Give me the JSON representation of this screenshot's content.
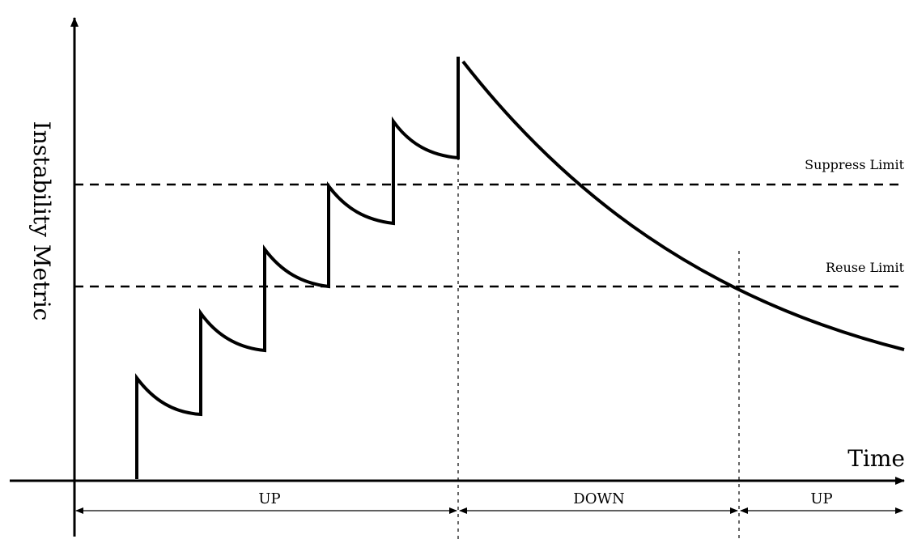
{
  "labels": {
    "y_axis": "Instability Metric",
    "x_axis": "Time",
    "suppress_limit": "Suppress Limit",
    "reuse_limit": "Reuse Limit"
  },
  "spans": [
    {
      "label": "UP"
    },
    {
      "label": "DOWN"
    },
    {
      "label": "UP"
    }
  ]
}
